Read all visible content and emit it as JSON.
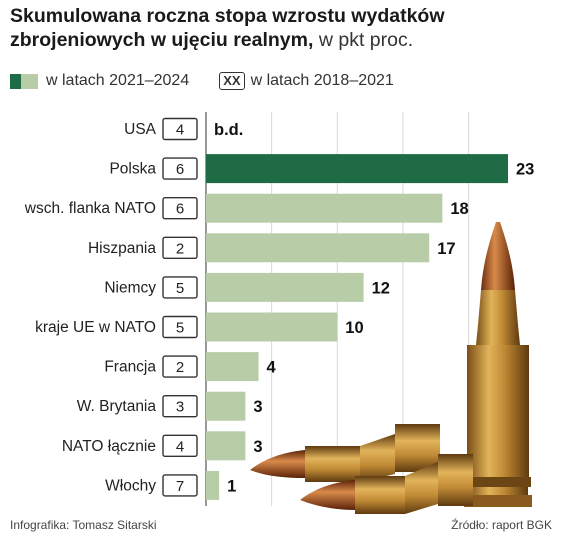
{
  "title_bold_1": "Skumulowana roczna stopa wzrostu wydatków",
  "title_bold_2": "zbrojeniowych w ujęciu realnym,",
  "title_unit": "w pkt proc.",
  "legend": {
    "current_label": "w latach 2021–2024",
    "prior_marker": "XX",
    "prior_label": "w latach 2018–2021"
  },
  "footer": {
    "credit": "Infografika: Tomasz Sitarski",
    "source": "Źródło: raport BGK"
  },
  "colors": {
    "highlight": "#1f6b45",
    "bar": "#b7cca7"
  },
  "chart_data": {
    "type": "bar",
    "orientation": "horizontal",
    "title": "Skumulowana roczna stopa wzrostu wydatków zbrojeniowych w ujęciu realnym, w pkt proc.",
    "categories": [
      "USA",
      "Polska",
      "wsch. flanka NATO",
      "Hiszpania",
      "Niemcy",
      "kraje UE w NATO",
      "Francja",
      "W. Brytania",
      "NATO łącznie",
      "Włochy"
    ],
    "series": [
      {
        "name": "w latach 2021–2024",
        "values": [
          null,
          23,
          18,
          17,
          12,
          10,
          4,
          3,
          3,
          1
        ],
        "value_labels": [
          "b.d.",
          "23",
          "18",
          "17",
          "12",
          "10",
          "4",
          "3",
          "3",
          "1"
        ]
      },
      {
        "name": "w latach 2018–2021",
        "values": [
          4,
          6,
          6,
          2,
          5,
          5,
          2,
          3,
          4,
          7
        ]
      }
    ],
    "highlight_category": "Polska",
    "xlim": [
      0,
      23
    ],
    "grid": true,
    "legend_position": "top-left"
  }
}
